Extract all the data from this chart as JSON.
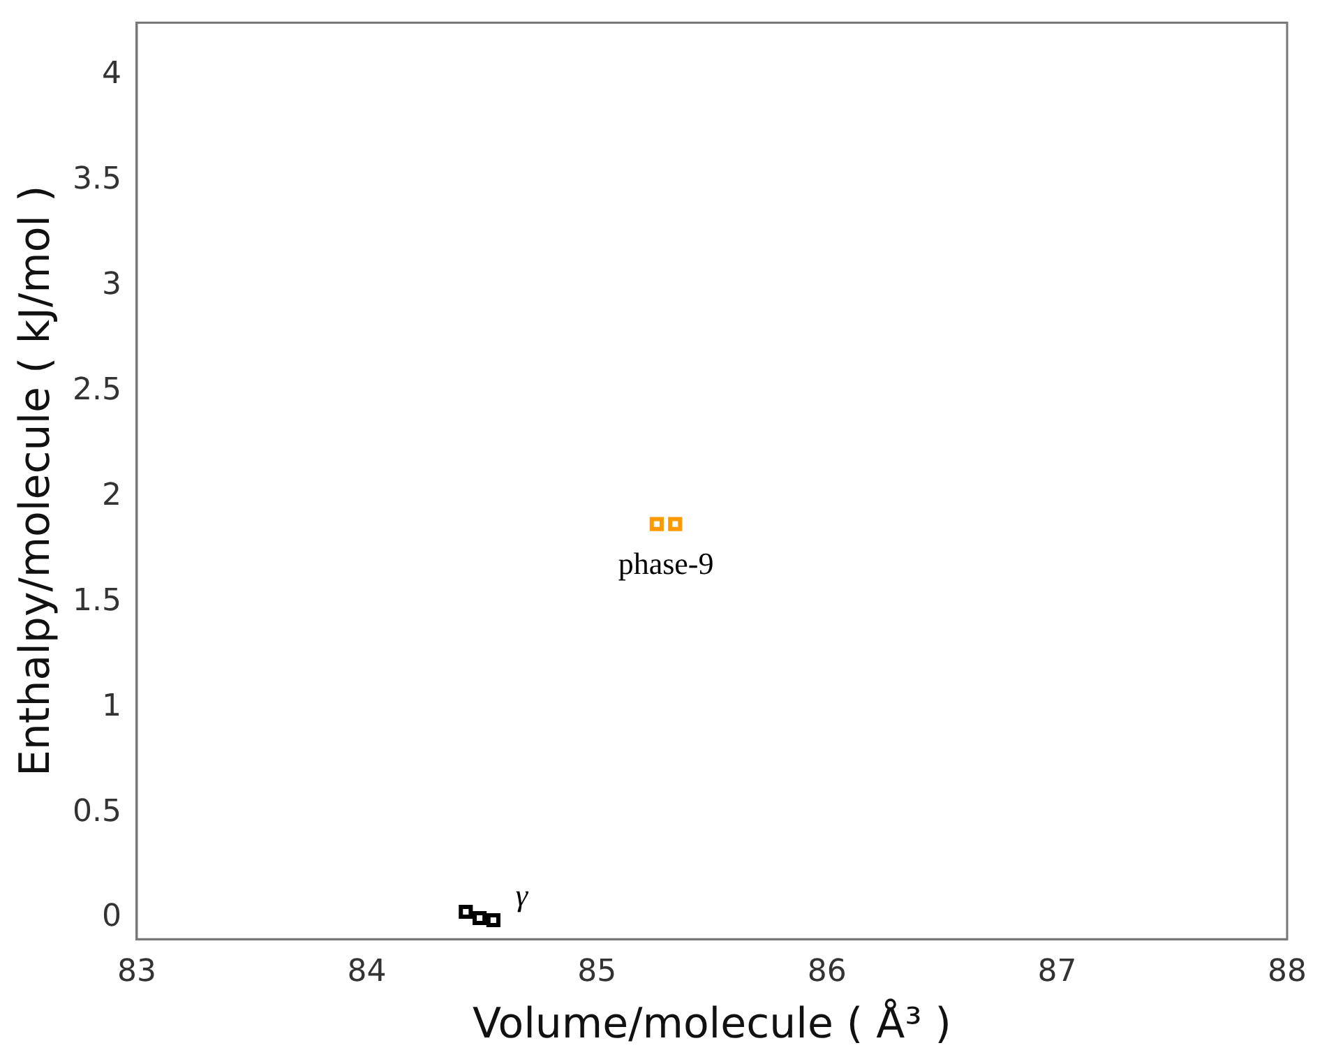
{
  "chart_data": {
    "type": "scatter",
    "xlabel": "Volume/molecule ( Å³ )",
    "ylabel": "Enthalpy/molecule ( kJ/mol )",
    "xlim": [
      83,
      88
    ],
    "xticks": [
      83,
      84,
      85,
      86,
      87,
      88
    ],
    "ylim": [
      -0.1,
      4.25
    ],
    "yticks": [
      0,
      0.5,
      1,
      1.5,
      2,
      2.5,
      3,
      3.5,
      4
    ],
    "series": [
      {
        "name": "γ",
        "color": "#000000",
        "x": [
          84.43,
          84.49,
          84.55
        ],
        "values": [
          0.03,
          0,
          -0.01
        ]
      },
      {
        "name": "phase-9",
        "color": "#ff9900",
        "x": [
          85.26,
          85.34
        ],
        "values": [
          1.87,
          1.87
        ]
      }
    ],
    "marker": "square",
    "grid": false,
    "legend": false
  }
}
